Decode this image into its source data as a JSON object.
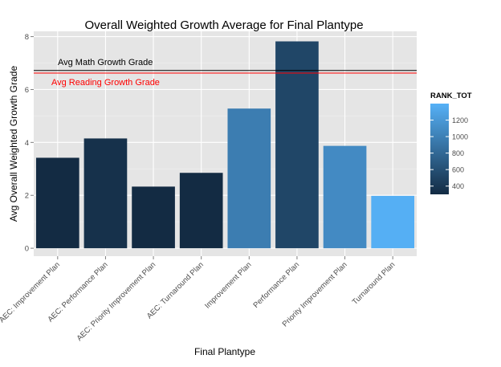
{
  "chart_data": {
    "type": "bar",
    "title": "Overall Weighted Growth Average for Final Plantype",
    "xlabel": "Final Plantype",
    "ylabel": "Avg Overall Weighted Growth Grade",
    "categories": [
      "AEC: Improvement Plan",
      "AEC: Performance Plan",
      "AEC: Priority Improvement Plan",
      "AEC: Turnaround Plan",
      "Improvement Plan",
      "Performance Plan",
      "Priority Improvement Plan",
      "Turnaround Plan"
    ],
    "values": [
      3.42,
      4.15,
      2.33,
      2.85,
      5.28,
      7.82,
      3.87,
      1.98
    ],
    "fill_rank_tot": [
      300,
      350,
      300,
      300,
      970,
      520,
      1080,
      1380
    ],
    "ylim": [
      -0.3,
      8.2
    ],
    "yticks": [
      0,
      2,
      4,
      6,
      8
    ],
    "grid": true,
    "reference_lines": [
      {
        "label": "Avg Math Growth Grade",
        "value": 6.72,
        "color": "#000000"
      },
      {
        "label": "Avg Reading Growth Grade",
        "value": 6.62,
        "color": "#ff0000"
      }
    ],
    "legend": {
      "title": "RANK_TOT",
      "position": "right",
      "ticks": [
        400,
        600,
        800,
        1000,
        1200
      ],
      "range": [
        300,
        1400
      ],
      "low_color": "#132B43",
      "high_color": "#56B1F7"
    }
  }
}
